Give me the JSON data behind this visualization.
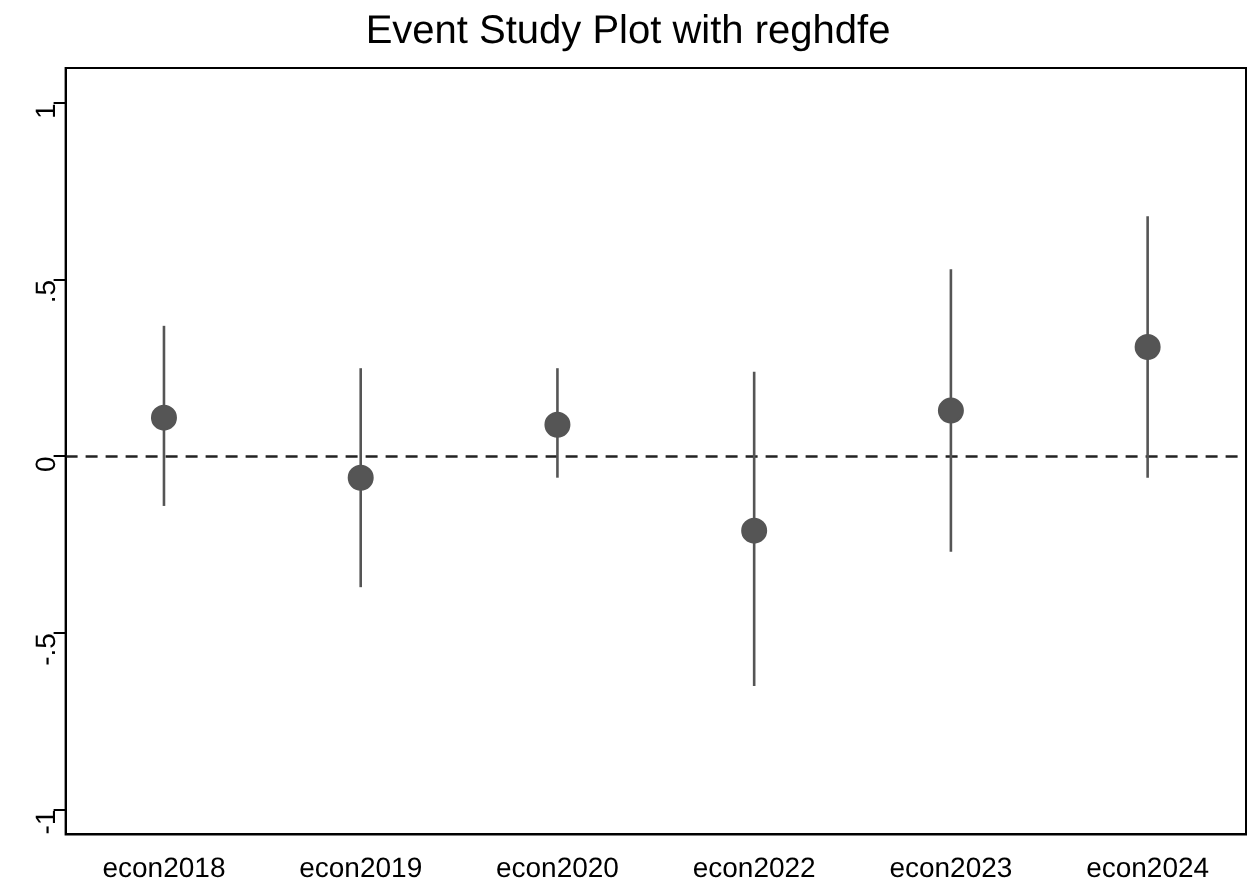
{
  "chart_data": {
    "type": "scatter",
    "title": "Event Study Plot with reghdfe",
    "categories": [
      "econ2018",
      "econ2019",
      "econ2020",
      "econ2022",
      "econ2023",
      "econ2024"
    ],
    "series": [
      {
        "color": "#555555",
        "values": [
          0.11,
          -0.06,
          0.09,
          -0.21,
          0.13,
          0.31
        ],
        "errors": [
          [
            -0.14,
            0.37
          ],
          [
            -0.37,
            0.25
          ],
          [
            -0.06,
            0.25
          ],
          [
            -0.65,
            0.24
          ],
          [
            -0.27,
            0.53
          ],
          [
            -0.06,
            0.68
          ]
        ]
      }
    ],
    "ylim": [
      -1.07,
      1.1
    ],
    "yticks": [
      {
        "value": -1,
        "label": "-1"
      },
      {
        "value": -0.5,
        "label": "-.5"
      },
      0,
      {
        "value": 0.5,
        "label": ".5"
      },
      1
    ],
    "ref_lines": [
      {
        "axis": "y",
        "value": 0,
        "color": "#222222",
        "line_style": "dashed"
      }
    ],
    "grid": false,
    "legend": false,
    "marker": "circle"
  }
}
